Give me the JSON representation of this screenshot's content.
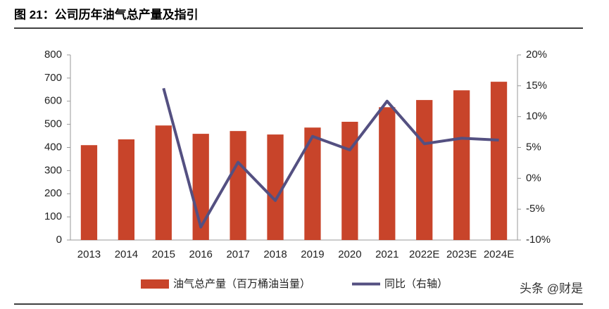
{
  "chart_data": {
    "type": "bar_line",
    "title": "图 21：公司历年油气总产量及指引",
    "watermark": "头条 @财是",
    "categories": [
      "2013",
      "2014",
      "2015",
      "2016",
      "2017",
      "2018",
      "2019",
      "2020",
      "2021",
      "2022E",
      "2023E",
      "2024E"
    ],
    "series": [
      {
        "name": "油气总产量（百万桶油当量）",
        "type": "bar",
        "color": "#c8442a",
        "values": [
          410,
          435,
          495,
          459,
          471,
          456,
          486,
          511,
          574,
          605,
          647,
          684
        ]
      },
      {
        "name": "同比（右轴）",
        "type": "line",
        "axis": "y2",
        "color": "#545081",
        "values": [
          null,
          null,
          14.6,
          -7.9,
          2.6,
          -3.6,
          6.8,
          4.6,
          12.5,
          5.6,
          6.5,
          6.2
        ]
      }
    ],
    "ylim": [
      0,
      800
    ],
    "yticks": [
      0,
      100,
      200,
      300,
      400,
      500,
      600,
      700,
      800
    ],
    "y2lim": [
      -10,
      20
    ],
    "y2ticks": [
      {
        "value": -10,
        "label": "-10%"
      },
      {
        "value": -5,
        "label": "-5%"
      },
      {
        "value": 0,
        "label": "0%"
      },
      {
        "value": 5,
        "label": "5%"
      },
      {
        "value": 10,
        "label": "10%"
      },
      {
        "value": 15,
        "label": "15%"
      },
      {
        "value": 20,
        "label": "20%"
      }
    ],
    "legend": "bottom"
  }
}
